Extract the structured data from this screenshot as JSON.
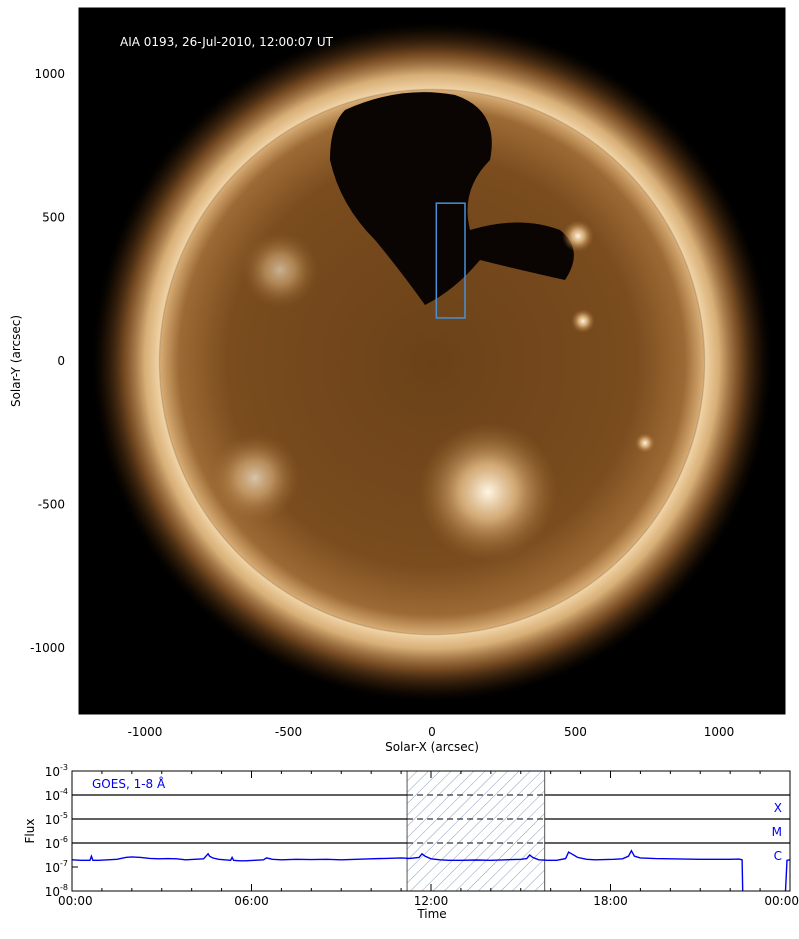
{
  "chart_data": [
    {
      "type": "image",
      "title": "AIA 0193, 26-Jul-2010, 12:00:07 UT",
      "xlabel": "Solar-X (arcsec)",
      "ylabel": "Solar-Y (arcsec)",
      "xlim": [
        -1230,
        1230
      ],
      "ylim": [
        -1230,
        1230
      ],
      "xticks": [
        -1000,
        -500,
        0,
        500,
        1000
      ],
      "xtick_labels": [
        "-1000",
        "-500",
        "0",
        "500",
        "1000"
      ],
      "yticks": [
        -1000,
        -500,
        0,
        500,
        1000
      ],
      "ytick_labels": [
        "-1000",
        "-500",
        "0",
        "500",
        "1000"
      ],
      "colors": {
        "disk": "#6b4518",
        "limb": "#e8c08a",
        "background": "#000000",
        "box": "#4a8fd6"
      },
      "roi_box": {
        "x": [
          15,
          115
        ],
        "y": [
          150,
          550
        ]
      }
    },
    {
      "type": "line",
      "label": "GOES, 1-8 Å",
      "xlabel": "Time",
      "ylabel": "Flux",
      "xlim": [
        0,
        24
      ],
      "ylim_log10": [
        -8,
        -3
      ],
      "xtick_labels": [
        "00:00",
        "06:00",
        "12:00",
        "18:00",
        "00:00"
      ],
      "xticks": [
        0,
        6,
        12,
        18,
        24
      ],
      "ytick_exponents": [
        "-8",
        "-7",
        "-6",
        "-5",
        "-4",
        "-3"
      ],
      "class_lines": [
        {
          "name": "X",
          "level": -4
        },
        {
          "name": "M",
          "level": -5
        },
        {
          "name": "C",
          "level": -6
        }
      ],
      "shaded_interval": [
        11.2,
        15.8
      ],
      "colors": {
        "line": "#0000ee",
        "hatch": "#8aa0c0"
      },
      "series": [
        {
          "x": [
            0,
            0.3,
            0.6,
            0.65,
            0.7,
            0.9,
            1.2,
            1.5,
            1.8,
            2.0,
            2.3,
            2.6,
            2.9,
            3.2,
            3.5,
            3.8,
            4.1,
            4.4,
            4.55,
            4.6,
            4.7,
            4.9,
            5.1,
            5.3,
            5.35,
            5.4,
            5.6,
            5.8,
            6.1,
            6.4,
            6.5,
            6.7,
            7.0,
            7.5,
            8.0,
            8.5,
            9.0,
            9.5,
            10.0,
            10.5,
            11.0,
            11.3,
            11.6,
            11.7,
            11.8,
            12.0,
            12.3,
            12.6,
            13.0,
            13.5,
            14.0,
            14.5,
            15.0,
            15.2,
            15.3,
            15.4,
            15.6,
            15.9,
            16.2,
            16.5,
            16.6,
            16.7,
            16.9,
            17.2,
            17.5,
            17.8,
            18.1,
            18.4,
            18.6,
            18.7,
            18.8,
            19.0,
            19.5,
            20.0,
            20.5,
            21.0,
            21.5,
            22.0,
            22.3,
            22.4,
            22.42
          ],
          "log10_flux": [
            -6.7,
            -6.72,
            -6.72,
            -6.55,
            -6.72,
            -6.72,
            -6.7,
            -6.68,
            -6.6,
            -6.58,
            -6.6,
            -6.64,
            -6.66,
            -6.65,
            -6.66,
            -6.7,
            -6.68,
            -6.66,
            -6.45,
            -6.55,
            -6.62,
            -6.68,
            -6.7,
            -6.72,
            -6.6,
            -6.72,
            -6.74,
            -6.74,
            -6.72,
            -6.7,
            -6.62,
            -6.68,
            -6.7,
            -6.68,
            -6.69,
            -6.68,
            -6.7,
            -6.68,
            -6.66,
            -6.64,
            -6.62,
            -6.64,
            -6.6,
            -6.45,
            -6.55,
            -6.66,
            -6.7,
            -6.72,
            -6.72,
            -6.71,
            -6.72,
            -6.7,
            -6.68,
            -6.65,
            -6.5,
            -6.6,
            -6.7,
            -6.72,
            -6.72,
            -6.65,
            -6.38,
            -6.45,
            -6.6,
            -6.68,
            -6.7,
            -6.69,
            -6.68,
            -6.66,
            -6.55,
            -6.32,
            -6.55,
            -6.62,
            -6.65,
            -6.66,
            -6.67,
            -6.68,
            -6.68,
            -6.68,
            -6.67,
            -6.7,
            -8.0
          ]
        },
        {
          "x": [
            23.85,
            23.9,
            24.0
          ],
          "log10_flux": [
            -8.0,
            -6.72,
            -6.7
          ]
        }
      ]
    }
  ]
}
